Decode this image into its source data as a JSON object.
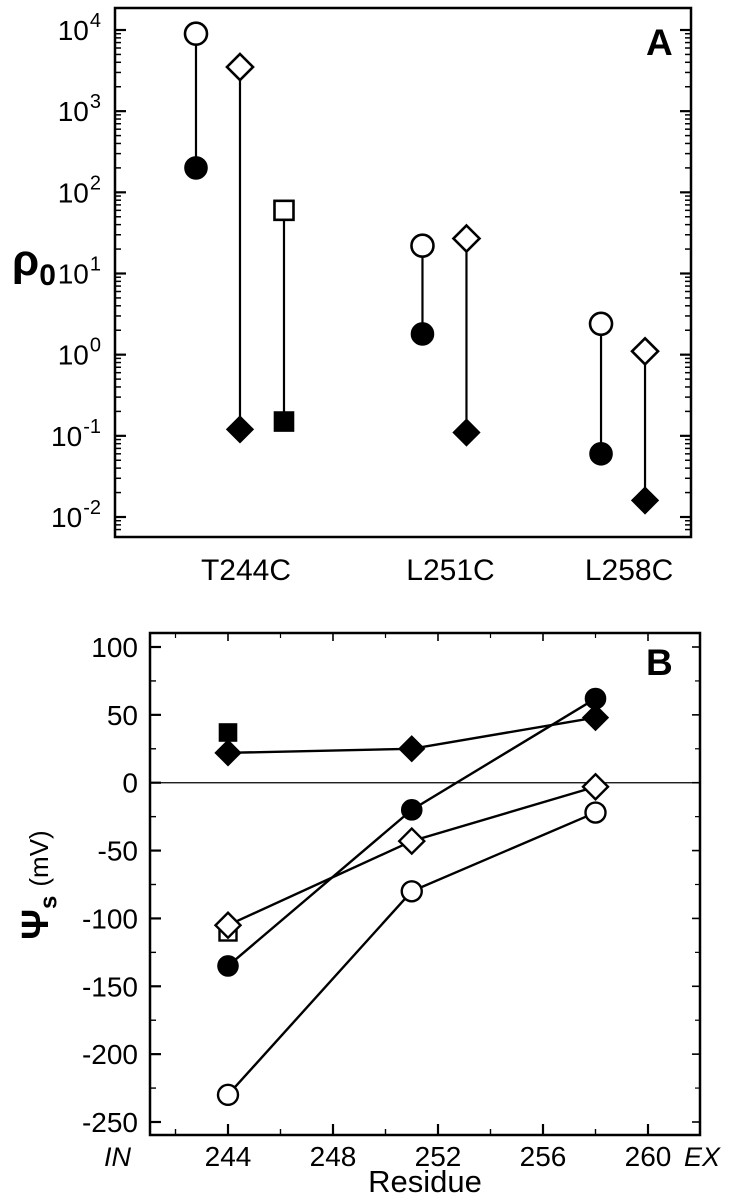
{
  "chart_data": [
    {
      "id": "panel-a",
      "type": "scatter",
      "panel_label": "A",
      "ylabel": "ρ0",
      "ylabel_symbol": "ρ",
      "ylabel_subscript": "0",
      "yscale": "log",
      "ylim": [
        0.01,
        10000
      ],
      "ytick_exponents": [
        4,
        3,
        2,
        1,
        0,
        -1,
        -2
      ],
      "categories": [
        "T244C",
        "L251C",
        "L258C"
      ],
      "pairs": [
        {
          "category": "T244C",
          "marker": "circle",
          "open": 9000,
          "filled": 200
        },
        {
          "category": "T244C",
          "marker": "diamond",
          "open": 3500,
          "filled": 0.12
        },
        {
          "category": "T244C",
          "marker": "square",
          "open": 60,
          "filled": 0.15
        },
        {
          "category": "L251C",
          "marker": "circle",
          "open": 22,
          "filled": 1.8
        },
        {
          "category": "L251C",
          "marker": "diamond",
          "open": 27,
          "filled": 0.11
        },
        {
          "category": "L258C",
          "marker": "circle",
          "open": 2.4,
          "filled": 0.06
        },
        {
          "category": "L258C",
          "marker": "diamond",
          "open": 1.1,
          "filled": 0.016
        }
      ]
    },
    {
      "id": "panel-b",
      "type": "line",
      "panel_label": "B",
      "xlabel": "Residue",
      "ylabel": "Ψs (mV)",
      "ylabel_symbol": "Ψ",
      "ylabel_subscript": "s",
      "ylabel_unit": "(mV)",
      "x_left_label": "IN",
      "x_right_label": "EX",
      "xlim": [
        241,
        262
      ],
      "ylim": [
        -250,
        100
      ],
      "xticks": [
        244,
        248,
        252,
        256,
        260
      ],
      "yticks": [
        100,
        50,
        0,
        -50,
        -100,
        -150,
        -200,
        -250
      ],
      "zero_line": true,
      "series": [
        {
          "name": "filled-square",
          "marker": "square",
          "variant": "filled",
          "line": false,
          "points": [
            [
              244,
              37
            ]
          ]
        },
        {
          "name": "filled-diamond",
          "marker": "diamond",
          "variant": "filled",
          "line": true,
          "points": [
            [
              244,
              22
            ],
            [
              251,
              25
            ],
            [
              258,
              48
            ]
          ]
        },
        {
          "name": "filled-circle",
          "marker": "circle",
          "variant": "filled",
          "line": true,
          "points": [
            [
              244,
              -135
            ],
            [
              251,
              -20
            ],
            [
              258,
              62
            ]
          ]
        },
        {
          "name": "open-square",
          "marker": "square",
          "variant": "open",
          "line": false,
          "points": [
            [
              244,
              -110
            ]
          ]
        },
        {
          "name": "open-diamond",
          "marker": "diamond",
          "variant": "open",
          "line": true,
          "points": [
            [
              244,
              -105
            ],
            [
              251,
              -43
            ],
            [
              258,
              -3
            ]
          ]
        },
        {
          "name": "open-circle",
          "marker": "circle",
          "variant": "open",
          "line": true,
          "points": [
            [
              244,
              -230
            ],
            [
              251,
              -80
            ],
            [
              258,
              -22
            ]
          ]
        }
      ]
    }
  ],
  "colors": {
    "ink": "#000000",
    "background": "#ffffff"
  }
}
